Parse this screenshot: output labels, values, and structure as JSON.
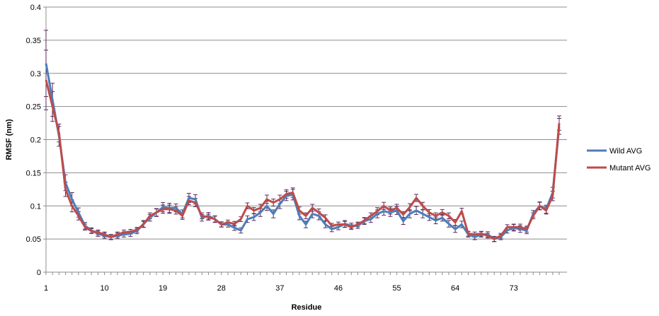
{
  "chart_data": {
    "type": "line",
    "title": "",
    "xlabel": "Residue",
    "ylabel": "RMSF (nm)",
    "ylim": [
      0,
      0.4
    ],
    "yticks": [
      "0",
      "0.05",
      "0.1",
      "0.15",
      "0.2",
      "0.25",
      "0.3",
      "0.35",
      "0.4"
    ],
    "yticks_values": [
      0,
      0.05,
      0.1,
      0.15,
      0.2,
      0.25,
      0.3,
      0.35,
      0.4
    ],
    "xticks": [
      "1",
      "10",
      "19",
      "28",
      "37",
      "46",
      "55",
      "64",
      "73"
    ],
    "xticks_values": [
      1,
      10,
      19,
      28,
      37,
      46,
      55,
      64,
      73
    ],
    "x_range": [
      1,
      82
    ],
    "grid": "horizontal",
    "legend": "right",
    "error_bars": true,
    "series": [
      {
        "name": "Wild AVG",
        "color": "#4a7ebb",
        "values": [
          0.315,
          0.26,
          0.205,
          0.135,
          0.11,
          0.09,
          0.07,
          0.063,
          0.058,
          0.055,
          0.053,
          0.055,
          0.057,
          0.058,
          0.062,
          0.073,
          0.082,
          0.09,
          0.098,
          0.097,
          0.097,
          0.088,
          0.112,
          0.11,
          0.082,
          0.085,
          0.08,
          0.072,
          0.072,
          0.067,
          0.063,
          0.08,
          0.083,
          0.09,
          0.1,
          0.088,
          0.103,
          0.115,
          0.117,
          0.085,
          0.072,
          0.088,
          0.085,
          0.072,
          0.065,
          0.068,
          0.073,
          0.07,
          0.07,
          0.077,
          0.08,
          0.088,
          0.092,
          0.09,
          0.093,
          0.077,
          0.088,
          0.093,
          0.088,
          0.083,
          0.078,
          0.082,
          0.073,
          0.065,
          0.072,
          0.057,
          0.053,
          0.057,
          0.057,
          0.05,
          0.053,
          0.063,
          0.067,
          0.065,
          0.063,
          0.088,
          0.1,
          0.095,
          0.12,
          0.22
        ],
        "errors": [
          0.05,
          0.025,
          0.015,
          0.012,
          0.01,
          0.007,
          0.005,
          0.004,
          0.004,
          0.004,
          0.004,
          0.004,
          0.004,
          0.004,
          0.004,
          0.005,
          0.005,
          0.006,
          0.007,
          0.007,
          0.006,
          0.006,
          0.007,
          0.007,
          0.005,
          0.005,
          0.005,
          0.004,
          0.004,
          0.004,
          0.004,
          0.005,
          0.005,
          0.006,
          0.007,
          0.006,
          0.007,
          0.007,
          0.008,
          0.006,
          0.005,
          0.006,
          0.006,
          0.005,
          0.004,
          0.004,
          0.005,
          0.004,
          0.004,
          0.005,
          0.005,
          0.006,
          0.006,
          0.006,
          0.006,
          0.005,
          0.006,
          0.006,
          0.006,
          0.005,
          0.005,
          0.005,
          0.005,
          0.005,
          0.005,
          0.004,
          0.004,
          0.004,
          0.004,
          0.004,
          0.004,
          0.004,
          0.005,
          0.005,
          0.005,
          0.005,
          0.006,
          0.006,
          0.008,
          0.012
        ]
      },
      {
        "name": "Mutant AVG",
        "color": "#be4b48",
        "values": [
          0.29,
          0.25,
          0.21,
          0.125,
          0.1,
          0.085,
          0.068,
          0.062,
          0.06,
          0.057,
          0.053,
          0.057,
          0.06,
          0.061,
          0.064,
          0.072,
          0.085,
          0.09,
          0.095,
          0.095,
          0.093,
          0.085,
          0.108,
          0.105,
          0.085,
          0.083,
          0.08,
          0.072,
          0.075,
          0.073,
          0.08,
          0.1,
          0.093,
          0.097,
          0.11,
          0.105,
          0.11,
          0.118,
          0.12,
          0.093,
          0.085,
          0.097,
          0.09,
          0.082,
          0.07,
          0.072,
          0.072,
          0.068,
          0.072,
          0.078,
          0.085,
          0.092,
          0.1,
          0.093,
          0.097,
          0.087,
          0.098,
          0.112,
          0.1,
          0.09,
          0.085,
          0.09,
          0.085,
          0.075,
          0.092,
          0.058,
          0.057,
          0.058,
          0.055,
          0.05,
          0.055,
          0.068,
          0.068,
          0.068,
          0.065,
          0.085,
          0.1,
          0.093,
          0.115,
          0.225
        ]
      }
    ]
  }
}
